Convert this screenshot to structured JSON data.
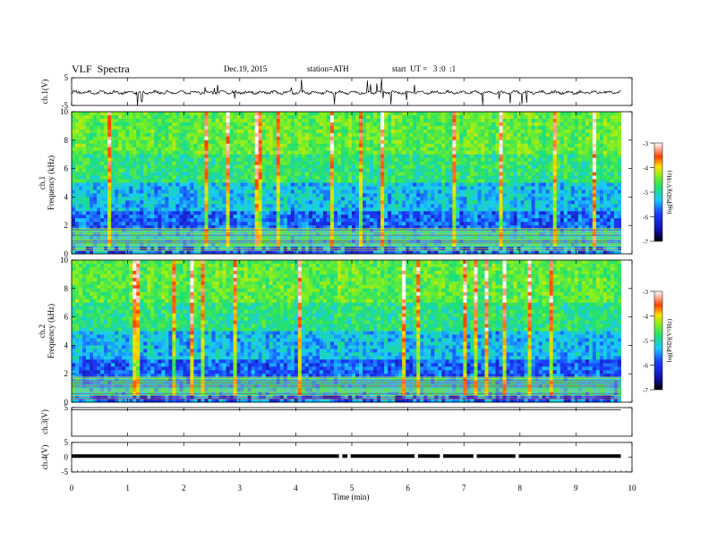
{
  "header": {
    "title": "VLF  Spectra",
    "date": "Dec.19, 2015",
    "station": "station=ATH",
    "start": "start  UT =   3 :0  :1"
  },
  "colors": {
    "c_neg7": "#00004c",
    "c_neg6": "#1a2bff",
    "c_neg5": "#19c8ff",
    "c_neg4": "#33dd33",
    "c_neg3": "#ffe000",
    "c_neg2": "#ff2000"
  },
  "chart_data": [
    {
      "id": "ch1_waveform",
      "type": "line",
      "ylabel": "ch.1(V)",
      "ylim": [
        -5,
        5
      ],
      "yticks": [
        "5",
        "-5"
      ],
      "xlim": [
        0,
        10
      ],
      "baseline": -0.3,
      "trace_end_min": 9.8
    },
    {
      "id": "ch1_spectrogram",
      "type": "heatmap",
      "ylabel_lines": [
        "ch.1",
        "Frequency  (kHz)"
      ],
      "ylim": [
        0,
        10
      ],
      "yticks": [
        "0",
        "2",
        "4",
        "6",
        "8",
        "10"
      ],
      "xlim": [
        0,
        10
      ],
      "colorbar": {
        "label": "log(PSD)(V²/Hz)",
        "range": [
          -7,
          -3
        ],
        "ticks": [
          "-7",
          "-6",
          "-5",
          "-4",
          "-3"
        ]
      }
    },
    {
      "id": "ch2_spectrogram",
      "type": "heatmap",
      "ylabel_lines": [
        "ch.2",
        "Frequency  (kHz)"
      ],
      "ylim": [
        0,
        10
      ],
      "yticks": [
        "0",
        "2",
        "4",
        "6",
        "8",
        "10"
      ],
      "xlim": [
        0,
        10
      ],
      "colorbar": {
        "label": "log(PSD)(V²/Hz)",
        "range": [
          -7,
          -3
        ],
        "ticks": [
          "-7",
          "-6",
          "-5",
          "-4",
          "-3"
        ]
      }
    },
    {
      "id": "ch3_waveform",
      "type": "line",
      "ylabel": "ch.3(V)",
      "ylim": [
        -5,
        5
      ],
      "yticks": [
        "5"
      ],
      "xlim": [
        0,
        10
      ],
      "baseline": 4.2
    },
    {
      "id": "ch4_waveform",
      "type": "line",
      "ylabel": "ch.4(V)",
      "ylim": [
        -5,
        5
      ],
      "yticks": [
        "5",
        "0",
        "-5"
      ],
      "xlim": [
        0,
        10
      ],
      "baseline": 0.4,
      "gaps_min": [
        4.8,
        4.95,
        6.15,
        6.6,
        7.2,
        7.95
      ]
    }
  ],
  "time_axis": {
    "xlabel": "Time  (min)",
    "xlim": [
      0,
      10
    ],
    "ticks": [
      "0",
      "1",
      "2",
      "3",
      "4",
      "5",
      "6",
      "7",
      "8",
      "9",
      "10"
    ]
  }
}
